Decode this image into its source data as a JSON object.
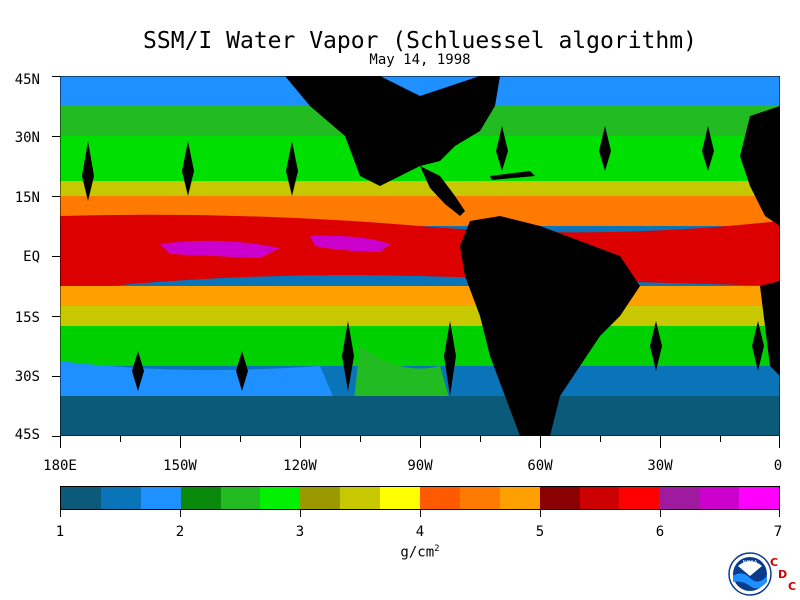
{
  "title": "SSM/I Water Vapor (Schluessel algorithm)",
  "date": "May 14, 1998",
  "lat_labels": [
    "45N",
    "30N",
    "15N",
    "EQ",
    "15S",
    "30S",
    "45S"
  ],
  "lon_labels": [
    "180E",
    "150W",
    "120W",
    "90W",
    "60W",
    "30W",
    "0"
  ],
  "colorbar": {
    "labels": [
      "1",
      "2",
      "3",
      "4",
      "5",
      "6",
      "7"
    ],
    "units_base": "g/cm",
    "units_exp": "2",
    "colors": [
      "#0b5a7a",
      "#0a74b8",
      "#1e90ff",
      "#0a8a0a",
      "#22bb22",
      "#00f000",
      "#9a9a00",
      "#c8c800",
      "#ffff00",
      "#ff5a00",
      "#ff7a00",
      "#ff9f00",
      "#8b0000",
      "#cc0000",
      "#ff0000",
      "#a01aa0",
      "#cc00cc",
      "#ff00ff"
    ]
  },
  "map_colors": {
    "land": "#000000",
    "low": "#0a74b8",
    "mid": "#00d000",
    "high": "#ff7a00",
    "peak": "#dd0000",
    "max": "#cc00cc"
  },
  "logo": {
    "agency": "NOAA",
    "letters": [
      "C",
      "D",
      "C"
    ]
  }
}
